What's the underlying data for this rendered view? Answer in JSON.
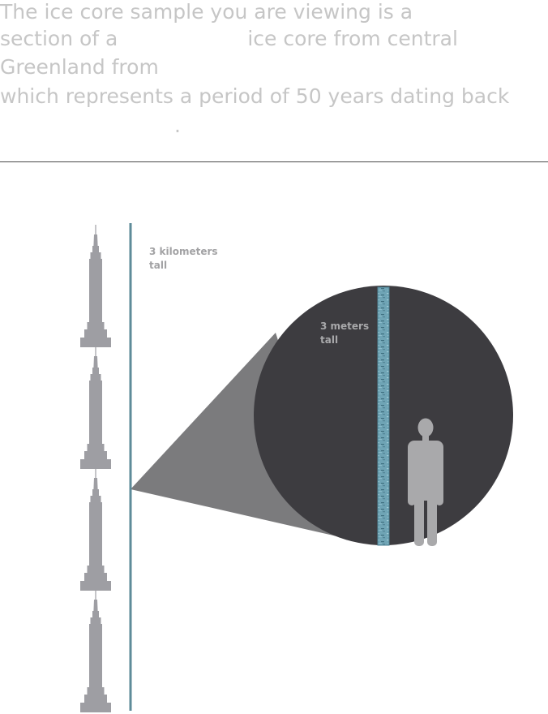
{
  "intro": {
    "line1": "The ice core sample you are viewing is a",
    "line2_a": "section of a",
    "line2_b": "ice core from central",
    "line3": "Greenland from",
    "line4": "which represents a period of 50 years dating back",
    "line5": "."
  },
  "diagram": {
    "kilometers_label_line1": "3 kilometers",
    "kilometers_label_line2": "tall",
    "meters_label_line1": "3 meters",
    "meters_label_line2": "tall"
  },
  "colors": {
    "text_light": "#c6c6c6",
    "building": "#9e9ea3",
    "core_line": "#5e8b99",
    "circle": "#3d3c40",
    "cone": "#7b7b7d",
    "person": "#a9a9ab",
    "ice_core": "#6fa4b5",
    "label_km": "#a2a2a4",
    "label_m": "#a8a8aa"
  }
}
